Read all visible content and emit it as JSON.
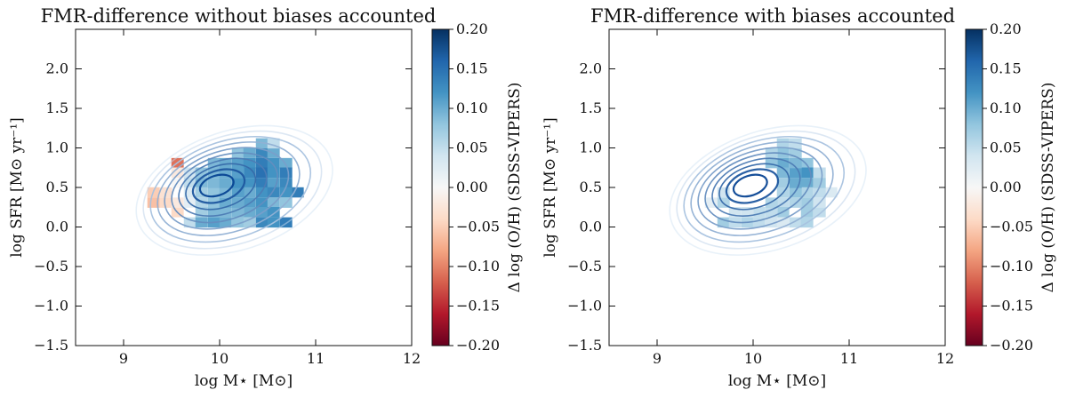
{
  "colormap": {
    "name": "RdBu",
    "low": "#67001f",
    "mid": "#f7f7f7",
    "high": "#053061"
  },
  "chart_data": [
    {
      "type": "heatmap",
      "title": "FMR-difference without biases accounted",
      "xlabel": "log M⋆ [M⊙]",
      "ylabel": "log SFR [M⊙ yr⁻¹]",
      "xlim": [
        8.5,
        12
      ],
      "ylim": [
        -1.5,
        2.5
      ],
      "xticks": [
        9,
        10,
        11,
        12
      ],
      "yticks": [
        -1.5,
        -1.0,
        -0.5,
        0.0,
        0.5,
        1.0,
        1.5,
        2.0
      ],
      "xtick_labels": [
        "9",
        "10",
        "11",
        "12"
      ],
      "ytick_labels": [
        "−1.5",
        "−1.0",
        "−0.5",
        "0.0",
        "0.5",
        "1.0",
        "1.5",
        "2.0"
      ],
      "grid": false,
      "colorbar": {
        "label": "Δ log (O/H) (SDSS-VIPERS)",
        "range": [
          -0.2,
          0.2
        ],
        "ticks": [
          0.2,
          0.15,
          0.1,
          0.05,
          0.0,
          -0.05,
          -0.1,
          -0.15,
          -0.2
        ],
        "tick_labels": [
          "0.20",
          "0.15",
          "0.10",
          "0.05",
          "0.00",
          "−0.05",
          "−0.10",
          "−0.15",
          "−0.20"
        ]
      },
      "bin_width_x": 0.125,
      "bin_height_y": 0.125,
      "cells": [
        {
          "x": 9.56,
          "y": 0.81,
          "v": -0.11
        },
        {
          "x": 9.31,
          "y": 0.44,
          "v": -0.05
        },
        {
          "x": 9.31,
          "y": 0.31,
          "v": -0.06
        },
        {
          "x": 9.44,
          "y": 0.31,
          "v": -0.04
        },
        {
          "x": 9.44,
          "y": 0.44,
          "v": -0.03
        },
        {
          "x": 9.56,
          "y": 0.19,
          "v": -0.04
        },
        {
          "x": 9.56,
          "y": 0.31,
          "v": -0.02
        },
        {
          "x": 9.69,
          "y": 0.31,
          "v": 0.02
        },
        {
          "x": 9.56,
          "y": 0.69,
          "v": -0.02
        },
        {
          "x": 9.69,
          "y": 0.69,
          "v": 0.04
        },
        {
          "x": 9.56,
          "y": 0.56,
          "v": 0.0
        },
        {
          "x": 9.69,
          "y": 0.56,
          "v": 0.05
        },
        {
          "x": 9.81,
          "y": 0.69,
          "v": 0.08
        },
        {
          "x": 9.81,
          "y": 0.56,
          "v": 0.09
        },
        {
          "x": 9.69,
          "y": 0.44,
          "v": 0.03
        },
        {
          "x": 9.81,
          "y": 0.44,
          "v": 0.07
        },
        {
          "x": 9.81,
          "y": 0.31,
          "v": 0.06
        },
        {
          "x": 9.69,
          "y": 0.06,
          "v": 0.05
        },
        {
          "x": 9.81,
          "y": 0.19,
          "v": 0.07
        },
        {
          "x": 9.81,
          "y": 0.06,
          "v": 0.1
        },
        {
          "x": 9.94,
          "y": 0.06,
          "v": 0.11
        },
        {
          "x": 10.06,
          "y": 0.06,
          "v": 0.1
        },
        {
          "x": 10.19,
          "y": 0.06,
          "v": 0.08
        },
        {
          "x": 9.94,
          "y": 0.81,
          "v": 0.09
        },
        {
          "x": 10.06,
          "y": 0.81,
          "v": 0.1
        },
        {
          "x": 10.19,
          "y": 0.81,
          "v": 0.11
        },
        {
          "x": 10.19,
          "y": 0.94,
          "v": 0.08
        },
        {
          "x": 10.31,
          "y": 0.94,
          "v": 0.1
        },
        {
          "x": 10.31,
          "y": 0.81,
          "v": 0.12
        },
        {
          "x": 10.44,
          "y": 0.94,
          "v": 0.13
        },
        {
          "x": 10.44,
          "y": 1.06,
          "v": 0.09
        },
        {
          "x": 10.56,
          "y": 0.94,
          "v": 0.1
        },
        {
          "x": 10.56,
          "y": 1.06,
          "v": 0.05
        },
        {
          "x": 10.44,
          "y": 0.81,
          "v": 0.14
        },
        {
          "x": 10.56,
          "y": 0.81,
          "v": 0.12
        },
        {
          "x": 10.69,
          "y": 0.81,
          "v": 0.1
        },
        {
          "x": 10.31,
          "y": 0.69,
          "v": 0.13
        },
        {
          "x": 10.44,
          "y": 0.69,
          "v": 0.15
        },
        {
          "x": 10.56,
          "y": 0.69,
          "v": 0.12
        },
        {
          "x": 10.69,
          "y": 0.69,
          "v": 0.14
        },
        {
          "x": 10.31,
          "y": 0.56,
          "v": 0.12
        },
        {
          "x": 10.44,
          "y": 0.56,
          "v": 0.14
        },
        {
          "x": 10.56,
          "y": 0.56,
          "v": 0.11
        },
        {
          "x": 10.69,
          "y": 0.56,
          "v": 0.13
        },
        {
          "x": 10.81,
          "y": 0.44,
          "v": 0.14
        },
        {
          "x": 10.31,
          "y": 0.44,
          "v": 0.1
        },
        {
          "x": 10.44,
          "y": 0.44,
          "v": 0.12
        },
        {
          "x": 10.56,
          "y": 0.44,
          "v": 0.13
        },
        {
          "x": 10.69,
          "y": 0.44,
          "v": 0.12
        },
        {
          "x": 10.31,
          "y": 0.31,
          "v": 0.11
        },
        {
          "x": 10.44,
          "y": 0.31,
          "v": 0.12
        },
        {
          "x": 10.56,
          "y": 0.31,
          "v": 0.09
        },
        {
          "x": 10.69,
          "y": 0.31,
          "v": 0.08
        },
        {
          "x": 10.31,
          "y": 0.19,
          "v": 0.1
        },
        {
          "x": 10.44,
          "y": 0.19,
          "v": 0.11
        },
        {
          "x": 10.56,
          "y": 0.19,
          "v": 0.12
        },
        {
          "x": 10.31,
          "y": 0.06,
          "v": 0.07
        },
        {
          "x": 10.44,
          "y": 0.06,
          "v": 0.13
        },
        {
          "x": 10.56,
          "y": 0.06,
          "v": 0.12
        },
        {
          "x": 10.69,
          "y": 0.06,
          "v": 0.14
        },
        {
          "x": 10.19,
          "y": 0.19,
          "v": 0.09
        },
        {
          "x": 10.19,
          "y": 0.31,
          "v": 0.1
        },
        {
          "x": 10.19,
          "y": 0.44,
          "v": 0.11
        },
        {
          "x": 10.19,
          "y": 0.56,
          "v": 0.12
        },
        {
          "x": 10.19,
          "y": 0.69,
          "v": 0.11
        },
        {
          "x": 10.06,
          "y": 0.19,
          "v": 0.09
        },
        {
          "x": 9.94,
          "y": 0.19,
          "v": 0.09
        },
        {
          "x": 9.94,
          "y": 0.31,
          "v": 0.08
        },
        {
          "x": 10.06,
          "y": 0.31,
          "v": 0.1
        },
        {
          "x": 9.94,
          "y": 0.44,
          "v": 0.08
        },
        {
          "x": 10.06,
          "y": 0.44,
          "v": 0.09
        },
        {
          "x": 9.94,
          "y": 0.56,
          "v": 0.09
        },
        {
          "x": 10.06,
          "y": 0.56,
          "v": 0.1
        },
        {
          "x": 9.94,
          "y": 0.69,
          "v": 0.09
        },
        {
          "x": 10.06,
          "y": 0.69,
          "v": 0.1
        }
      ]
    },
    {
      "type": "heatmap",
      "title": "FMR-difference with biases accounted",
      "xlabel": "log M⋆ [M⊙]",
      "ylabel": "log SFR [M⊙ yr⁻¹]",
      "xlim": [
        8.5,
        12
      ],
      "ylim": [
        -1.5,
        2.5
      ],
      "xticks": [
        9,
        10,
        11,
        12
      ],
      "yticks": [
        -1.5,
        -1.0,
        -0.5,
        0.0,
        0.5,
        1.0,
        1.5,
        2.0
      ],
      "xtick_labels": [
        "9",
        "10",
        "11",
        "12"
      ],
      "ytick_labels": [
        "−1.5",
        "−1.0",
        "−0.5",
        "0.0",
        "0.5",
        "1.0",
        "1.5",
        "2.0"
      ],
      "grid": false,
      "colorbar": {
        "label": "Δ log (O/H) (SDSS-VIPERS)",
        "range": [
          -0.2,
          0.2
        ],
        "ticks": [
          0.2,
          0.15,
          0.1,
          0.05,
          0.0,
          -0.05,
          -0.1,
          -0.15,
          -0.2
        ],
        "tick_labels": [
          "0.20",
          "0.15",
          "0.10",
          "0.05",
          "0.00",
          "−0.05",
          "−0.10",
          "−0.15",
          "−0.20"
        ]
      },
      "bin_width_x": 0.125,
      "bin_height_y": 0.125,
      "cells": [
        {
          "x": 9.56,
          "y": 0.31,
          "v": 0.02
        },
        {
          "x": 9.69,
          "y": 0.31,
          "v": 0.06
        },
        {
          "x": 9.69,
          "y": 0.44,
          "v": 0.04
        },
        {
          "x": 9.69,
          "y": 0.06,
          "v": 0.07
        },
        {
          "x": 9.81,
          "y": 0.06,
          "v": 0.05
        },
        {
          "x": 9.81,
          "y": 0.19,
          "v": 0.04
        },
        {
          "x": 9.94,
          "y": 0.06,
          "v": 0.06
        },
        {
          "x": 10.06,
          "y": 0.06,
          "v": 0.05
        },
        {
          "x": 10.19,
          "y": 0.06,
          "v": 0.04
        },
        {
          "x": 10.31,
          "y": 0.06,
          "v": 0.03
        },
        {
          "x": 10.44,
          "y": 0.06,
          "v": 0.05
        },
        {
          "x": 10.56,
          "y": 0.06,
          "v": 0.06
        },
        {
          "x": 10.56,
          "y": 0.19,
          "v": 0.07
        },
        {
          "x": 10.69,
          "y": 0.19,
          "v": 0.05
        },
        {
          "x": 10.69,
          "y": 0.31,
          "v": 0.04
        },
        {
          "x": 10.81,
          "y": 0.44,
          "v": 0.03
        },
        {
          "x": 10.69,
          "y": 0.44,
          "v": 0.05
        },
        {
          "x": 10.69,
          "y": 0.56,
          "v": 0.07
        },
        {
          "x": 10.69,
          "y": 0.69,
          "v": 0.05
        },
        {
          "x": 10.56,
          "y": 0.81,
          "v": 0.08
        },
        {
          "x": 10.56,
          "y": 0.69,
          "v": 0.12
        },
        {
          "x": 10.56,
          "y": 0.56,
          "v": 0.1
        },
        {
          "x": 10.56,
          "y": 0.44,
          "v": 0.06
        },
        {
          "x": 10.56,
          "y": 0.31,
          "v": 0.07
        },
        {
          "x": 10.44,
          "y": 0.31,
          "v": 0.06
        },
        {
          "x": 10.44,
          "y": 0.44,
          "v": 0.08
        },
        {
          "x": 10.44,
          "y": 0.56,
          "v": 0.1
        },
        {
          "x": 10.44,
          "y": 0.69,
          "v": 0.11
        },
        {
          "x": 10.44,
          "y": 0.81,
          "v": 0.09
        },
        {
          "x": 10.44,
          "y": 0.94,
          "v": 0.07
        },
        {
          "x": 10.44,
          "y": 1.06,
          "v": 0.05
        },
        {
          "x": 10.31,
          "y": 1.06,
          "v": 0.06
        },
        {
          "x": 10.31,
          "y": 0.94,
          "v": 0.08
        },
        {
          "x": 10.31,
          "y": 0.81,
          "v": 0.1
        },
        {
          "x": 10.31,
          "y": 0.69,
          "v": 0.09
        },
        {
          "x": 10.31,
          "y": 0.56,
          "v": 0.07
        },
        {
          "x": 10.31,
          "y": 0.44,
          "v": 0.06
        },
        {
          "x": 10.31,
          "y": 0.31,
          "v": 0.05
        },
        {
          "x": 10.31,
          "y": 0.19,
          "v": 0.07
        },
        {
          "x": 10.19,
          "y": 0.19,
          "v": 0.05
        },
        {
          "x": 10.19,
          "y": 0.31,
          "v": 0.06
        },
        {
          "x": 10.19,
          "y": 0.81,
          "v": 0.08
        },
        {
          "x": 10.19,
          "y": 0.94,
          "v": 0.06
        },
        {
          "x": 10.06,
          "y": 0.19,
          "v": 0.05
        },
        {
          "x": 9.94,
          "y": 0.19,
          "v": 0.04
        }
      ]
    }
  ]
}
